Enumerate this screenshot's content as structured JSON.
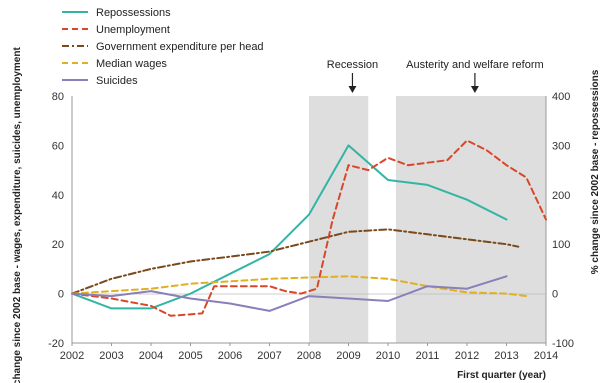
{
  "chart_data": {
    "type": "line",
    "title": "",
    "xlabel": "First quarter (year)",
    "ylabel_left": "% change since 2002 base - wages, expenditure, suicides, unemployment",
    "ylabel_right": "% change since 2002 base - repossessions",
    "xlim": [
      2002,
      2014
    ],
    "ylim_left": [
      -20,
      80
    ],
    "ylim_right": [
      -100,
      400
    ],
    "x_ticks": [
      "2002",
      "2003",
      "2004",
      "2005",
      "2006",
      "2007",
      "2008",
      "2009",
      "2010",
      "2011",
      "2012",
      "2013",
      "2014"
    ],
    "y_ticks_left": [
      "-20",
      "0",
      "20",
      "40",
      "60",
      "80"
    ],
    "y_ticks_right": [
      "-100",
      "0",
      "100",
      "200",
      "300",
      "400"
    ],
    "grid": false,
    "legend_position": "top-left",
    "shaded_periods": [
      {
        "label": "Recession",
        "from": 2008,
        "to": 2009.5
      },
      {
        "label": "Austerity and welfare reform",
        "from": 2010.2,
        "to": 2014
      }
    ],
    "annotations": [
      {
        "text": "Recession",
        "x": 2009.1
      },
      {
        "text": "Austerity and welfare reform",
        "x": 2012.2
      }
    ],
    "series": [
      {
        "name": "Repossessions",
        "axis": "right",
        "color": "#33b5a5",
        "style": "solid",
        "points": [
          [
            2002,
            0
          ],
          [
            2003,
            -30
          ],
          [
            2004,
            -30
          ],
          [
            2005,
            0
          ],
          [
            2006,
            40
          ],
          [
            2007,
            80
          ],
          [
            2008,
            160
          ],
          [
            2009,
            300
          ],
          [
            2010,
            230
          ],
          [
            2011,
            220
          ],
          [
            2012,
            190
          ],
          [
            2013,
            150
          ]
        ]
      },
      {
        "name": "Unemployment",
        "axis": "left",
        "color": "#d9472b",
        "style": "dashed",
        "points": [
          [
            2002,
            0
          ],
          [
            2003,
            -2
          ],
          [
            2004,
            -5
          ],
          [
            2004.5,
            -9
          ],
          [
            2005.3,
            -8
          ],
          [
            2005.6,
            3
          ],
          [
            2006,
            3
          ],
          [
            2006.5,
            3
          ],
          [
            2007,
            3
          ],
          [
            2007.4,
            1
          ],
          [
            2007.8,
            0
          ],
          [
            2008.2,
            2
          ],
          [
            2008.6,
            30
          ],
          [
            2009,
            52
          ],
          [
            2009.5,
            50
          ],
          [
            2010,
            55
          ],
          [
            2010.5,
            52
          ],
          [
            2011,
            53
          ],
          [
            2011.5,
            54
          ],
          [
            2012,
            62
          ],
          [
            2012.5,
            58
          ],
          [
            2013,
            52
          ],
          [
            2013.5,
            47
          ],
          [
            2014,
            30
          ]
        ]
      },
      {
        "name": "Government expenditure per head",
        "axis": "left",
        "color": "#7a4a1c",
        "style": "dashdot",
        "points": [
          [
            2002,
            0
          ],
          [
            2003,
            6
          ],
          [
            2004,
            10
          ],
          [
            2005,
            13
          ],
          [
            2006,
            15
          ],
          [
            2007,
            17
          ],
          [
            2008,
            21
          ],
          [
            2009,
            25
          ],
          [
            2010,
            26
          ],
          [
            2011,
            24
          ],
          [
            2012,
            22
          ],
          [
            2013,
            20
          ],
          [
            2013.3,
            19
          ]
        ]
      },
      {
        "name": "Median wages",
        "axis": "left",
        "color": "#e0b020",
        "style": "dashed",
        "points": [
          [
            2002,
            0
          ],
          [
            2003,
            1
          ],
          [
            2004,
            2
          ],
          [
            2005,
            4
          ],
          [
            2006,
            5
          ],
          [
            2007,
            6
          ],
          [
            2008,
            6.5
          ],
          [
            2009,
            7
          ],
          [
            2010,
            6
          ],
          [
            2011,
            3
          ],
          [
            2012,
            0.5
          ],
          [
            2013,
            0
          ],
          [
            2013.5,
            -1
          ]
        ]
      },
      {
        "name": "Suicides",
        "axis": "left",
        "color": "#8a7fb8",
        "style": "solid",
        "points": [
          [
            2002,
            0
          ],
          [
            2003,
            -1
          ],
          [
            2004,
            1
          ],
          [
            2005,
            -2
          ],
          [
            2006,
            -4
          ],
          [
            2007,
            -7
          ],
          [
            2008,
            -1
          ],
          [
            2009,
            -2
          ],
          [
            2010,
            -3
          ],
          [
            2011,
            3
          ],
          [
            2012,
            2
          ],
          [
            2013,
            7
          ]
        ]
      }
    ]
  }
}
